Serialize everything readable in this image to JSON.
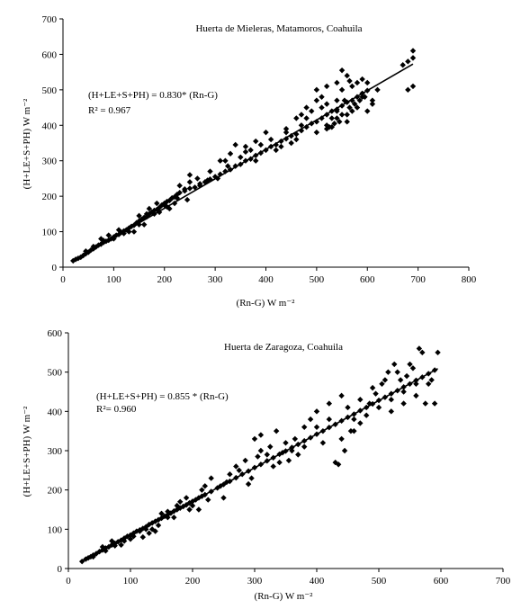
{
  "chart_data": [
    {
      "type": "scatter",
      "title": "Huerta de Mieleras, Matamoros, Coahuila",
      "xlabel": "(Rn-G) W m⁻²",
      "ylabel": "(H+LE+S+PH) W m⁻²",
      "xlim": [
        0,
        800
      ],
      "ylim": [
        0,
        700
      ],
      "xticks": [
        0,
        100,
        200,
        300,
        400,
        500,
        600,
        700,
        800
      ],
      "yticks": [
        0,
        100,
        200,
        300,
        400,
        500,
        600,
        700
      ],
      "equation": "(H+LE+S+PH) = 0.830* (Rn-G)",
      "r2": "R² = 0.967",
      "fit_slope": 0.83,
      "fit_x_range": [
        20,
        690
      ],
      "marker": "diamond",
      "grid": false,
      "points": [
        [
          20,
          18
        ],
        [
          25,
          22
        ],
        [
          30,
          25
        ],
        [
          35,
          28
        ],
        [
          40,
          33
        ],
        [
          45,
          38
        ],
        [
          50,
          42
        ],
        [
          55,
          48
        ],
        [
          60,
          52
        ],
        [
          65,
          57
        ],
        [
          70,
          62
        ],
        [
          75,
          65
        ],
        [
          80,
          70
        ],
        [
          85,
          73
        ],
        [
          90,
          76
        ],
        [
          95,
          80
        ],
        [
          100,
          85
        ],
        [
          105,
          90
        ],
        [
          110,
          92
        ],
        [
          115,
          98
        ],
        [
          120,
          102
        ],
        [
          125,
          105
        ],
        [
          130,
          110
        ],
        [
          135,
          115
        ],
        [
          140,
          118
        ],
        [
          145,
          125
        ],
        [
          150,
          130
        ],
        [
          155,
          135
        ],
        [
          160,
          140
        ],
        [
          165,
          142
        ],
        [
          170,
          150
        ],
        [
          175,
          155
        ],
        [
          180,
          160
        ],
        [
          185,
          162
        ],
        [
          190,
          168
        ],
        [
          195,
          175
        ],
        [
          200,
          180
        ],
        [
          205,
          185
        ],
        [
          210,
          188
        ],
        [
          215,
          195
        ],
        [
          220,
          198
        ],
        [
          225,
          205
        ],
        [
          230,
          210
        ],
        [
          240,
          215
        ],
        [
          250,
          222
        ],
        [
          260,
          225
        ],
        [
          270,
          235
        ],
        [
          280,
          240
        ],
        [
          290,
          248
        ],
        [
          300,
          255
        ],
        [
          310,
          262
        ],
        [
          320,
          270
        ],
        [
          330,
          275
        ],
        [
          340,
          285
        ],
        [
          350,
          290
        ],
        [
          360,
          300
        ],
        [
          370,
          305
        ],
        [
          380,
          315
        ],
        [
          390,
          322
        ],
        [
          400,
          330
        ],
        [
          410,
          340
        ],
        [
          420,
          345
        ],
        [
          430,
          355
        ],
        [
          440,
          362
        ],
        [
          450,
          370
        ],
        [
          460,
          375
        ],
        [
          470,
          385
        ],
        [
          480,
          395
        ],
        [
          490,
          405
        ],
        [
          500,
          410
        ],
        [
          510,
          420
        ],
        [
          520,
          430
        ],
        [
          530,
          440
        ],
        [
          540,
          445
        ],
        [
          550,
          455
        ],
        [
          560,
          465
        ],
        [
          570,
          470
        ],
        [
          580,
          480
        ],
        [
          590,
          490
        ],
        [
          600,
          498
        ],
        [
          45,
          45
        ],
        [
          60,
          58
        ],
        [
          75,
          80
        ],
        [
          90,
          90
        ],
        [
          110,
          105
        ],
        [
          130,
          100
        ],
        [
          150,
          145
        ],
        [
          170,
          165
        ],
        [
          190,
          155
        ],
        [
          210,
          165
        ],
        [
          230,
          230
        ],
        [
          250,
          240
        ],
        [
          270,
          230
        ],
        [
          290,
          270
        ],
        [
          310,
          300
        ],
        [
          330,
          320
        ],
        [
          350,
          310
        ],
        [
          370,
          330
        ],
        [
          390,
          345
        ],
        [
          410,
          360
        ],
        [
          430,
          340
        ],
        [
          450,
          350
        ],
        [
          470,
          400
        ],
        [
          490,
          440
        ],
        [
          500,
          470
        ],
        [
          510,
          480
        ],
        [
          520,
          390
        ],
        [
          530,
          420
        ],
        [
          540,
          470
        ],
        [
          550,
          500
        ],
        [
          560,
          540
        ],
        [
          570,
          510
        ],
        [
          580,
          450
        ],
        [
          600,
          440
        ],
        [
          610,
          460
        ],
        [
          620,
          500
        ],
        [
          520,
          460
        ],
        [
          540,
          420
        ],
        [
          560,
          430
        ],
        [
          500,
          380
        ],
        [
          480,
          420
        ],
        [
          460,
          360
        ],
        [
          440,
          380
        ],
        [
          500,
          500
        ],
        [
          520,
          510
        ],
        [
          540,
          520
        ],
        [
          550,
          555
        ],
        [
          565,
          525
        ],
        [
          580,
          520
        ],
        [
          590,
          530
        ],
        [
          520,
          400
        ],
        [
          530,
          395
        ],
        [
          560,
          410
        ],
        [
          570,
          440
        ],
        [
          600,
          520
        ],
        [
          610,
          470
        ],
        [
          590,
          480
        ],
        [
          480,
          450
        ],
        [
          470,
          430
        ],
        [
          510,
          450
        ],
        [
          250,
          260
        ],
        [
          240,
          220
        ],
        [
          220,
          180
        ],
        [
          200,
          175
        ],
        [
          180,
          150
        ],
        [
          160,
          120
        ],
        [
          140,
          100
        ],
        [
          120,
          95
        ],
        [
          100,
          80
        ],
        [
          80,
          75
        ],
        [
          320,
          300
        ],
        [
          340,
          345
        ],
        [
          360,
          340
        ],
        [
          380,
          300
        ],
        [
          400,
          380
        ],
        [
          420,
          330
        ],
        [
          440,
          390
        ],
        [
          460,
          420
        ],
        [
          380,
          355
        ],
        [
          360,
          325
        ],
        [
          150,
          120
        ],
        [
          165,
          150
        ],
        [
          185,
          180
        ],
        [
          205,
          170
        ],
        [
          225,
          195
        ],
        [
          245,
          190
        ],
        [
          265,
          250
        ],
        [
          285,
          245
        ],
        [
          305,
          250
        ],
        [
          325,
          285
        ],
        [
          680,
          580
        ],
        [
          690,
          610
        ],
        [
          680,
          500
        ],
        [
          690,
          510
        ],
        [
          670,
          570
        ],
        [
          690,
          590
        ],
        [
          540,
          440
        ],
        [
          550,
          430
        ],
        [
          555,
          470
        ],
        [
          565,
          450
        ],
        [
          575,
          460
        ],
        [
          585,
          470
        ],
        [
          595,
          480
        ],
        [
          545,
          410
        ],
        [
          535,
          405
        ],
        [
          525,
          395
        ]
      ]
    },
    {
      "type": "scatter",
      "title": "Huerta de Zaragoza, Coahuila",
      "xlabel": "(Rn-G) W m⁻²",
      "ylabel": "(H+LE+S+PH) W m⁻²",
      "xlim": [
        0,
        700
      ],
      "ylim": [
        0,
        600
      ],
      "xticks": [
        0,
        100,
        200,
        300,
        400,
        500,
        600,
        700
      ],
      "yticks": [
        0,
        100,
        200,
        300,
        400,
        500,
        600
      ],
      "equation": "(H+LE+S+PH) = 0.855 * (Rn-G)",
      "r2": "R²= 0.960",
      "fit_slope": 0.855,
      "fit_x_range": [
        20,
        595
      ],
      "marker": "diamond",
      "grid": false,
      "points": [
        [
          22,
          18
        ],
        [
          28,
          24
        ],
        [
          32,
          27
        ],
        [
          36,
          30
        ],
        [
          40,
          34
        ],
        [
          45,
          38
        ],
        [
          50,
          43
        ],
        [
          55,
          47
        ],
        [
          60,
          52
        ],
        [
          65,
          55
        ],
        [
          70,
          60
        ],
        [
          75,
          64
        ],
        [
          80,
          68
        ],
        [
          85,
          72
        ],
        [
          90,
          77
        ],
        [
          95,
          82
        ],
        [
          100,
          85
        ],
        [
          105,
          90
        ],
        [
          110,
          95
        ],
        [
          115,
          98
        ],
        [
          120,
          102
        ],
        [
          125,
          106
        ],
        [
          130,
          112
        ],
        [
          135,
          116
        ],
        [
          140,
          120
        ],
        [
          145,
          124
        ],
        [
          150,
          128
        ],
        [
          155,
          133
        ],
        [
          160,
          137
        ],
        [
          165,
          141
        ],
        [
          170,
          146
        ],
        [
          175,
          150
        ],
        [
          180,
          154
        ],
        [
          185,
          158
        ],
        [
          190,
          162
        ],
        [
          195,
          167
        ],
        [
          200,
          171
        ],
        [
          205,
          175
        ],
        [
          210,
          180
        ],
        [
          215,
          184
        ],
        [
          220,
          188
        ],
        [
          230,
          196
        ],
        [
          240,
          205
        ],
        [
          250,
          214
        ],
        [
          260,
          222
        ],
        [
          270,
          231
        ],
        [
          280,
          240
        ],
        [
          290,
          248
        ],
        [
          300,
          257
        ],
        [
          310,
          265
        ],
        [
          320,
          274
        ],
        [
          330,
          282
        ],
        [
          340,
          291
        ],
        [
          350,
          299
        ],
        [
          360,
          308
        ],
        [
          370,
          316
        ],
        [
          380,
          325
        ],
        [
          390,
          333
        ],
        [
          400,
          342
        ],
        [
          410,
          350
        ],
        [
          420,
          359
        ],
        [
          430,
          367
        ],
        [
          440,
          376
        ],
        [
          450,
          385
        ],
        [
          460,
          393
        ],
        [
          470,
          402
        ],
        [
          480,
          410
        ],
        [
          490,
          419
        ],
        [
          500,
          428
        ],
        [
          510,
          436
        ],
        [
          520,
          445
        ],
        [
          530,
          453
        ],
        [
          540,
          462
        ],
        [
          550,
          470
        ],
        [
          560,
          479
        ],
        [
          570,
          487
        ],
        [
          580,
          496
        ],
        [
          590,
          505
        ],
        [
          40,
          30
        ],
        [
          55,
          55
        ],
        [
          70,
          70
        ],
        [
          85,
          60
        ],
        [
          100,
          75
        ],
        [
          115,
          95
        ],
        [
          130,
          90
        ],
        [
          150,
          140
        ],
        [
          170,
          130
        ],
        [
          190,
          180
        ],
        [
          210,
          150
        ],
        [
          230,
          230
        ],
        [
          250,
          180
        ],
        [
          270,
          260
        ],
        [
          290,
          215
        ],
        [
          310,
          300
        ],
        [
          330,
          260
        ],
        [
          350,
          320
        ],
        [
          370,
          290
        ],
        [
          390,
          380
        ],
        [
          410,
          320
        ],
        [
          430,
          270
        ],
        [
          440,
          330
        ],
        [
          450,
          410
        ],
        [
          460,
          350
        ],
        [
          470,
          430
        ],
        [
          480,
          390
        ],
        [
          490,
          460
        ],
        [
          500,
          410
        ],
        [
          510,
          480
        ],
        [
          520,
          400
        ],
        [
          530,
          500
        ],
        [
          540,
          450
        ],
        [
          550,
          520
        ],
        [
          560,
          470
        ],
        [
          565,
          560
        ],
        [
          570,
          550
        ],
        [
          580,
          470
        ],
        [
          590,
          420
        ],
        [
          595,
          550
        ],
        [
          300,
          330
        ],
        [
          310,
          340
        ],
        [
          320,
          290
        ],
        [
          340,
          270
        ],
        [
          360,
          300
        ],
        [
          380,
          360
        ],
        [
          400,
          400
        ],
        [
          420,
          420
        ],
        [
          440,
          440
        ],
        [
          460,
          380
        ],
        [
          380,
          310
        ],
        [
          400,
          360
        ],
        [
          420,
          380
        ],
        [
          435,
          265
        ],
        [
          445,
          300
        ],
        [
          455,
          350
        ],
        [
          470,
          370
        ],
        [
          485,
          420
        ],
        [
          495,
          445
        ],
        [
          505,
          470
        ],
        [
          520,
          430
        ],
        [
          535,
          480
        ],
        [
          545,
          490
        ],
        [
          555,
          510
        ],
        [
          560,
          440
        ],
        [
          575,
          420
        ],
        [
          585,
          480
        ],
        [
          540,
          420
        ],
        [
          525,
          520
        ],
        [
          515,
          500
        ],
        [
          260,
          240
        ],
        [
          275,
          250
        ],
        [
          285,
          275
        ],
        [
          295,
          230
        ],
        [
          305,
          285
        ],
        [
          325,
          310
        ],
        [
          335,
          350
        ],
        [
          345,
          295
        ],
        [
          355,
          275
        ],
        [
          365,
          330
        ],
        [
          120,
          80
        ],
        [
          135,
          100
        ],
        [
          145,
          110
        ],
        [
          160,
          130
        ],
        [
          175,
          160
        ],
        [
          195,
          150
        ],
        [
          215,
          200
        ],
        [
          225,
          175
        ],
        [
          245,
          210
        ],
        [
          255,
          220
        ],
        [
          60,
          45
        ],
        [
          75,
          58
        ],
        [
          90,
          70
        ],
        [
          105,
          82
        ],
        [
          125,
          100
        ],
        [
          140,
          95
        ],
        [
          160,
          145
        ],
        [
          180,
          170
        ],
        [
          200,
          160
        ],
        [
          220,
          210
        ]
      ]
    }
  ]
}
